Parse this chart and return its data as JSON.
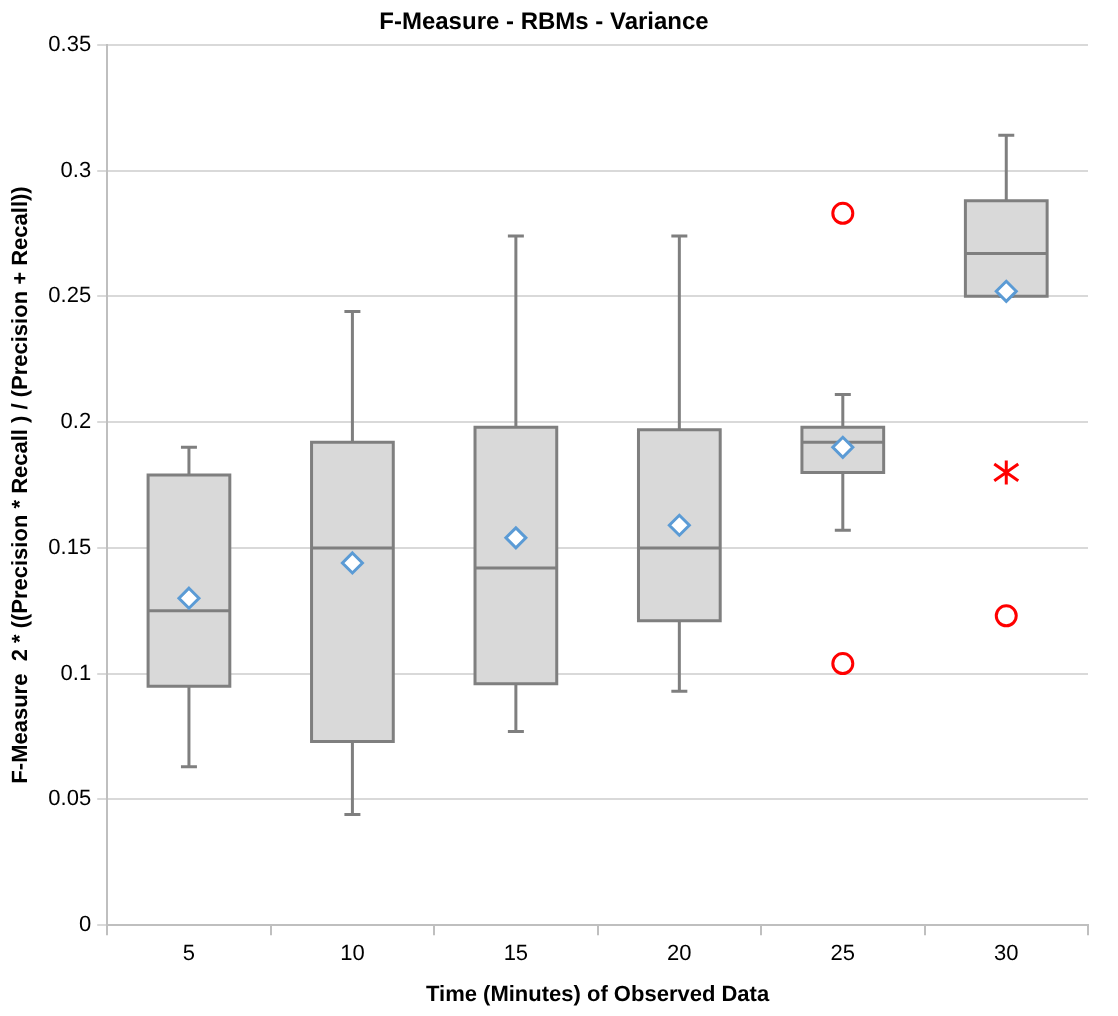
{
  "chart_data": {
    "type": "box",
    "title": "F-Measure - RBMs - Variance",
    "xlabel": "Time (Minutes) of Observed Data",
    "ylabel": "F-Measure  2 * ((Precision * Recall ) / (Precision + Recall))",
    "categories": [
      "5",
      "10",
      "15",
      "20",
      "25",
      "30"
    ],
    "series": [
      {
        "color": "#d9d9d9",
        "marker": "diamond",
        "boxes": [
          {
            "low": 0.063,
            "q1": 0.095,
            "median": 0.125,
            "q3": 0.179,
            "high": 0.19,
            "mean": 0.13
          },
          {
            "low": 0.044,
            "q1": 0.073,
            "median": 0.15,
            "q3": 0.192,
            "high": 0.244,
            "mean": 0.144
          },
          {
            "low": 0.077,
            "q1": 0.096,
            "median": 0.142,
            "q3": 0.198,
            "high": 0.274,
            "mean": 0.154
          },
          {
            "low": 0.093,
            "q1": 0.121,
            "median": 0.15,
            "q3": 0.197,
            "high": 0.274,
            "mean": 0.159
          },
          {
            "low": 0.157,
            "q1": 0.18,
            "median": 0.192,
            "q3": 0.198,
            "high": 0.211,
            "mean": 0.19,
            "outliers": [
              0.283,
              0.104
            ]
          },
          {
            "low": 0.25,
            "q1": 0.25,
            "median": 0.267,
            "q3": 0.288,
            "high": 0.314,
            "mean": 0.252,
            "outliers": [
              0.123
            ]
          }
        ]
      },
      {
        "type": "scatter",
        "color": "#ff0000",
        "marker": "cross",
        "x": [
          "30"
        ],
        "values": [
          0.18
        ]
      }
    ],
    "ylim": [
      0,
      0.35
    ],
    "yticks": [
      0,
      0.05,
      0.1,
      0.15,
      0.2,
      0.25,
      0.3,
      0.35
    ],
    "grid": "y"
  }
}
